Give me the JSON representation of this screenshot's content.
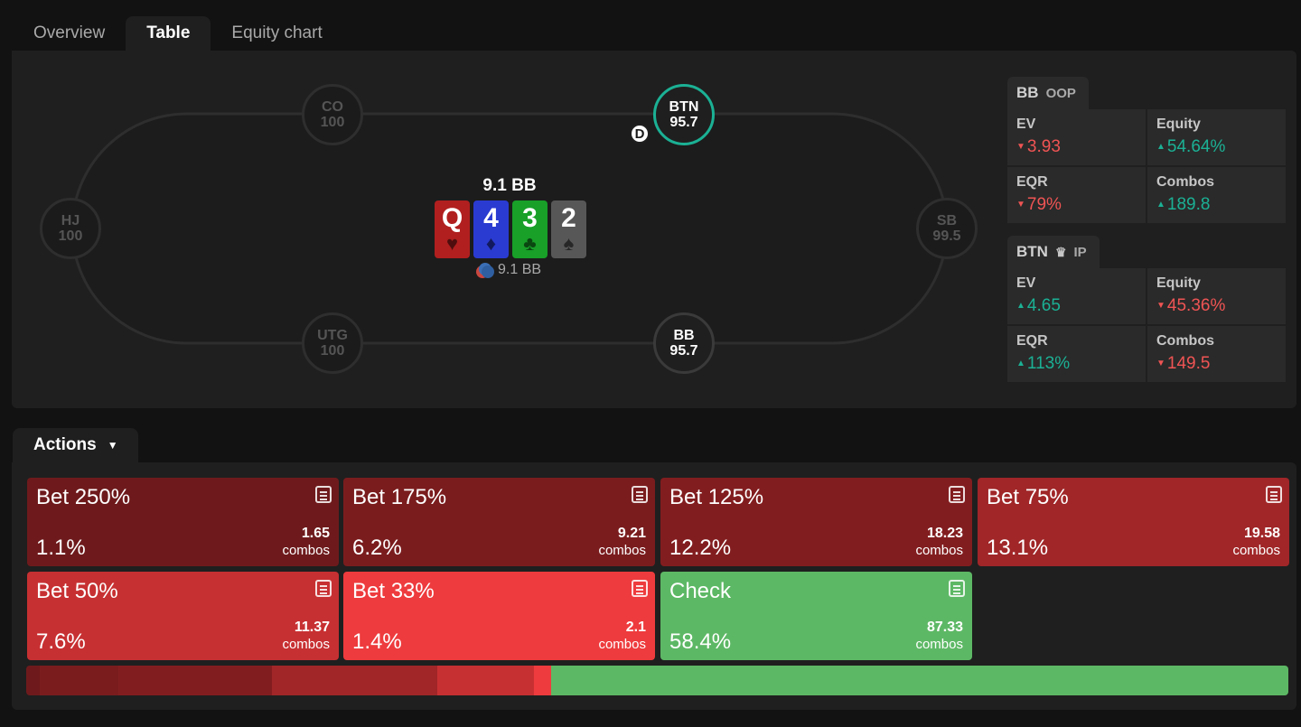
{
  "tabs": [
    {
      "label": "Overview",
      "active": false
    },
    {
      "label": "Table",
      "active": true
    },
    {
      "label": "Equity chart",
      "active": false
    }
  ],
  "seats": {
    "co": {
      "pos": "CO",
      "stack": "100"
    },
    "btn": {
      "pos": "BTN",
      "stack": "95.7"
    },
    "hj": {
      "pos": "HJ",
      "stack": "100"
    },
    "sb": {
      "pos": "SB",
      "stack": "99.5"
    },
    "utg": {
      "pos": "UTG",
      "stack": "100"
    },
    "bb": {
      "pos": "BB",
      "stack": "95.7"
    }
  },
  "dealer_label": "D",
  "pot": "9.1 BB",
  "board": [
    {
      "rank": "Q",
      "suit": "♥",
      "color": "#b11f1f"
    },
    {
      "rank": "4",
      "suit": "♦",
      "color": "#2a3bd1"
    },
    {
      "rank": "3",
      "suit": "♣",
      "color": "#18a028"
    },
    {
      "rank": "2",
      "suit": "♠",
      "color": "#575757"
    }
  ],
  "chips_label": "9.1 BB",
  "stats_bb": {
    "pos": "BB",
    "sub": "OOP",
    "ev_label": "EV",
    "ev": "3.93",
    "equity_label": "Equity",
    "equity": "54.64%",
    "eqr_label": "EQR",
    "eqr": "79%",
    "combos_label": "Combos",
    "combos": "189.8"
  },
  "stats_btn": {
    "pos": "BTN",
    "crown_icon": "crown-icon",
    "sub": "IP",
    "ev_label": "EV",
    "ev": "4.65",
    "equity_label": "Equity",
    "equity": "45.36%",
    "eqr_label": "EQR",
    "eqr": "113%",
    "combos_label": "Combos",
    "combos": "149.5"
  },
  "actions_label": "Actions",
  "combos_word": "combos",
  "actions": [
    {
      "name": "Bet 250%",
      "pct": "1.1%",
      "combos": "1.65",
      "color": "#6e1a1c",
      "freq": 1.1
    },
    {
      "name": "Bet 175%",
      "pct": "6.2%",
      "combos": "9.21",
      "color": "#7a1c1e",
      "freq": 6.2
    },
    {
      "name": "Bet 125%",
      "pct": "12.2%",
      "combos": "18.23",
      "color": "#821d1f",
      "freq": 12.2
    },
    {
      "name": "Bet 75%",
      "pct": "13.1%",
      "combos": "19.58",
      "color": "#a02628",
      "freq": 13.1
    },
    {
      "name": "Bet 50%",
      "pct": "7.6%",
      "combos": "11.37",
      "color": "#c73032",
      "freq": 7.6
    },
    {
      "name": "Bet 33%",
      "pct": "1.4%",
      "combos": "2.1",
      "color": "#ee3b3d",
      "freq": 1.4
    },
    {
      "name": "Check",
      "pct": "58.4%",
      "combos": "87.33",
      "color": "#5db865",
      "freq": 58.4
    }
  ]
}
